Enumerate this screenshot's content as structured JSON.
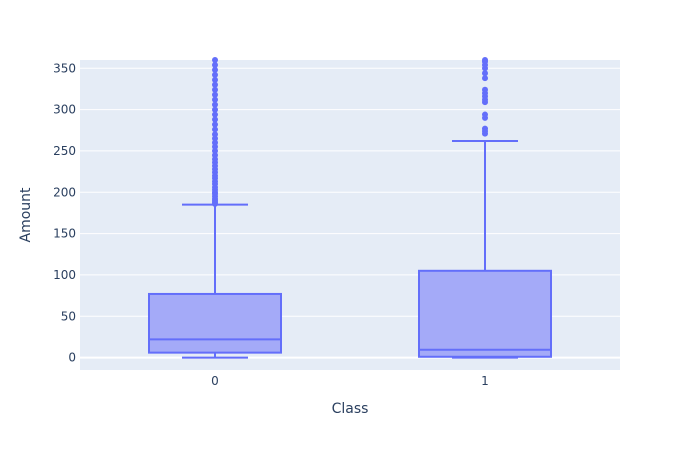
{
  "chart_data": {
    "type": "box",
    "xlabel": "Class",
    "ylabel": "Amount",
    "categories": [
      "0",
      "1"
    ],
    "ylim": [
      -15,
      360
    ],
    "y_ticks": [
      0,
      50,
      100,
      150,
      200,
      250,
      300,
      350
    ],
    "grid": true,
    "colors": {
      "plot_bg": "#e5ecf6",
      "grid": "#ffffff",
      "box_fill": "#a4aaf8",
      "box_line": "#636efa",
      "text": "#2a3f5f"
    },
    "boxes": [
      {
        "category": "0",
        "min": 0,
        "q1": 6,
        "median": 22,
        "q3": 77,
        "upper_fence": 185,
        "outliers": [
          186,
          188,
          190,
          192,
          195,
          198,
          200,
          203,
          206,
          210,
          213,
          217,
          220,
          224,
          228,
          232,
          236,
          240,
          245,
          250,
          255,
          260,
          265,
          270,
          276,
          282,
          288,
          294,
          300,
          306,
          312,
          318,
          324,
          330,
          336,
          342,
          348,
          354,
          360
        ]
      },
      {
        "category": "1",
        "min": 0,
        "q1": 1,
        "median": 9.5,
        "q3": 105,
        "upper_fence": 262,
        "outliers": [
          271,
          274,
          277,
          290,
          294,
          309,
          312,
          316,
          320,
          324,
          338,
          344,
          350,
          354,
          358,
          360
        ]
      }
    ]
  }
}
